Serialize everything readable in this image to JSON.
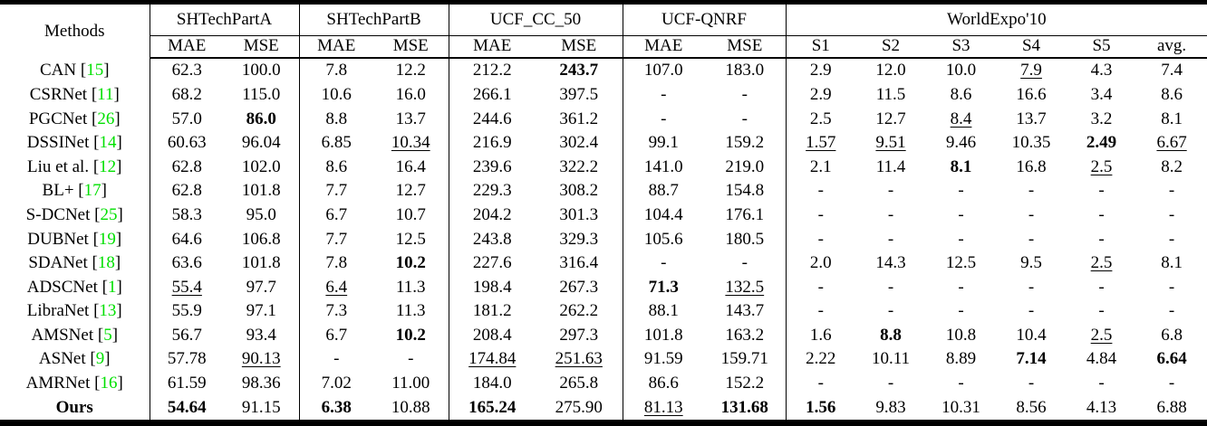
{
  "colors": {
    "citation_green": "#00e000",
    "text": "#000000",
    "background": "#ffffff"
  },
  "table": {
    "methods_label": "Methods",
    "groups": [
      {
        "label": "SHTechPartA",
        "sub": [
          "MAE",
          "MSE"
        ]
      },
      {
        "label": "SHTechPartB",
        "sub": [
          "MAE",
          "MSE"
        ]
      },
      {
        "label": "UCF_CC_50",
        "sub": [
          "MAE",
          "MSE"
        ]
      },
      {
        "label": "UCF-QNRF",
        "sub": [
          "MAE",
          "MSE"
        ]
      },
      {
        "label": "WorldExpo'10",
        "sub": [
          "S1",
          "S2",
          "S3",
          "S4",
          "S5",
          "avg."
        ]
      }
    ],
    "rows": [
      {
        "label": "CAN",
        "cite": "15",
        "bold": false,
        "cells": [
          {
            "v": "62.3"
          },
          {
            "v": "100.0"
          },
          {
            "v": "7.8"
          },
          {
            "v": "12.2"
          },
          {
            "v": "212.2"
          },
          {
            "v": "243.7",
            "b": true
          },
          {
            "v": "107.0"
          },
          {
            "v": "183.0"
          },
          {
            "v": "2.9"
          },
          {
            "v": "12.0"
          },
          {
            "v": "10.0"
          },
          {
            "v": "7.9",
            "u": true
          },
          {
            "v": "4.3"
          },
          {
            "v": "7.4"
          }
        ]
      },
      {
        "label": "CSRNet",
        "cite": "11",
        "bold": false,
        "cells": [
          {
            "v": "68.2"
          },
          {
            "v": "115.0"
          },
          {
            "v": "10.6"
          },
          {
            "v": "16.0"
          },
          {
            "v": "266.1"
          },
          {
            "v": "397.5"
          },
          {
            "v": "-"
          },
          {
            "v": "-"
          },
          {
            "v": "2.9"
          },
          {
            "v": "11.5"
          },
          {
            "v": "8.6"
          },
          {
            "v": "16.6"
          },
          {
            "v": "3.4"
          },
          {
            "v": "8.6"
          }
        ]
      },
      {
        "label": "PGCNet",
        "cite": "26",
        "bold": false,
        "cells": [
          {
            "v": "57.0"
          },
          {
            "v": "86.0",
            "b": true
          },
          {
            "v": "8.8"
          },
          {
            "v": "13.7"
          },
          {
            "v": "244.6"
          },
          {
            "v": "361.2"
          },
          {
            "v": "-"
          },
          {
            "v": "-"
          },
          {
            "v": "2.5"
          },
          {
            "v": "12.7"
          },
          {
            "v": "8.4",
            "u": true
          },
          {
            "v": "13.7"
          },
          {
            "v": "3.2"
          },
          {
            "v": "8.1"
          }
        ]
      },
      {
        "label": "DSSINet",
        "cite": "14",
        "bold": false,
        "cells": [
          {
            "v": "60.63"
          },
          {
            "v": "96.04"
          },
          {
            "v": "6.85"
          },
          {
            "v": "10.34",
            "u": true
          },
          {
            "v": "216.9"
          },
          {
            "v": "302.4"
          },
          {
            "v": "99.1"
          },
          {
            "v": "159.2"
          },
          {
            "v": "1.57",
            "u": true
          },
          {
            "v": "9.51",
            "u": true
          },
          {
            "v": "9.46"
          },
          {
            "v": "10.35"
          },
          {
            "v": "2.49",
            "b": true
          },
          {
            "v": "6.67",
            "u": true
          }
        ]
      },
      {
        "label": "Liu et al.",
        "cite": "12",
        "bold": false,
        "cells": [
          {
            "v": "62.8"
          },
          {
            "v": "102.0"
          },
          {
            "v": "8.6"
          },
          {
            "v": "16.4"
          },
          {
            "v": "239.6"
          },
          {
            "v": "322.2"
          },
          {
            "v": "141.0"
          },
          {
            "v": "219.0"
          },
          {
            "v": "2.1"
          },
          {
            "v": "11.4"
          },
          {
            "v": "8.1",
            "b": true
          },
          {
            "v": "16.8"
          },
          {
            "v": "2.5",
            "u": true
          },
          {
            "v": "8.2"
          }
        ]
      },
      {
        "label": "BL+",
        "cite": "17",
        "bold": false,
        "cells": [
          {
            "v": "62.8"
          },
          {
            "v": "101.8"
          },
          {
            "v": "7.7"
          },
          {
            "v": "12.7"
          },
          {
            "v": "229.3"
          },
          {
            "v": "308.2"
          },
          {
            "v": "88.7"
          },
          {
            "v": "154.8"
          },
          {
            "v": "-"
          },
          {
            "v": "-"
          },
          {
            "v": "-"
          },
          {
            "v": "-"
          },
          {
            "v": "-"
          },
          {
            "v": "-"
          }
        ]
      },
      {
        "label": "S-DCNet",
        "cite": "25",
        "bold": false,
        "cells": [
          {
            "v": "58.3"
          },
          {
            "v": "95.0"
          },
          {
            "v": "6.7"
          },
          {
            "v": "10.7"
          },
          {
            "v": "204.2"
          },
          {
            "v": "301.3"
          },
          {
            "v": "104.4"
          },
          {
            "v": "176.1"
          },
          {
            "v": "-"
          },
          {
            "v": "-"
          },
          {
            "v": "-"
          },
          {
            "v": "-"
          },
          {
            "v": "-"
          },
          {
            "v": "-"
          }
        ]
      },
      {
        "label": "DUBNet",
        "cite": "19",
        "bold": false,
        "cells": [
          {
            "v": "64.6"
          },
          {
            "v": "106.8"
          },
          {
            "v": "7.7"
          },
          {
            "v": "12.5"
          },
          {
            "v": "243.8"
          },
          {
            "v": "329.3"
          },
          {
            "v": "105.6"
          },
          {
            "v": "180.5"
          },
          {
            "v": "-"
          },
          {
            "v": "-"
          },
          {
            "v": "-"
          },
          {
            "v": "-"
          },
          {
            "v": "-"
          },
          {
            "v": "-"
          }
        ]
      },
      {
        "label": "SDANet",
        "cite": "18",
        "bold": false,
        "cells": [
          {
            "v": "63.6"
          },
          {
            "v": "101.8"
          },
          {
            "v": "7.8"
          },
          {
            "v": "10.2",
            "b": true
          },
          {
            "v": "227.6"
          },
          {
            "v": "316.4"
          },
          {
            "v": "-"
          },
          {
            "v": "-"
          },
          {
            "v": "2.0"
          },
          {
            "v": "14.3"
          },
          {
            "v": "12.5"
          },
          {
            "v": "9.5"
          },
          {
            "v": "2.5",
            "u": true
          },
          {
            "v": "8.1"
          }
        ]
      },
      {
        "label": "ADSCNet",
        "cite": "1",
        "bold": false,
        "cells": [
          {
            "v": "55.4",
            "u": true
          },
          {
            "v": "97.7"
          },
          {
            "v": "6.4",
            "u": true
          },
          {
            "v": "11.3"
          },
          {
            "v": "198.4"
          },
          {
            "v": "267.3"
          },
          {
            "v": "71.3",
            "b": true
          },
          {
            "v": "132.5",
            "u": true
          },
          {
            "v": "-"
          },
          {
            "v": "-"
          },
          {
            "v": "-"
          },
          {
            "v": "-"
          },
          {
            "v": "-"
          },
          {
            "v": "-"
          }
        ]
      },
      {
        "label": "LibraNet",
        "cite": "13",
        "bold": false,
        "cells": [
          {
            "v": "55.9"
          },
          {
            "v": "97.1"
          },
          {
            "v": "7.3"
          },
          {
            "v": "11.3"
          },
          {
            "v": "181.2"
          },
          {
            "v": "262.2"
          },
          {
            "v": "88.1"
          },
          {
            "v": "143.7"
          },
          {
            "v": "-"
          },
          {
            "v": "-"
          },
          {
            "v": "-"
          },
          {
            "v": "-"
          },
          {
            "v": "-"
          },
          {
            "v": "-"
          }
        ]
      },
      {
        "label": "AMSNet",
        "cite": "5",
        "bold": false,
        "cells": [
          {
            "v": "56.7"
          },
          {
            "v": "93.4"
          },
          {
            "v": "6.7"
          },
          {
            "v": "10.2",
            "b": true
          },
          {
            "v": "208.4"
          },
          {
            "v": "297.3"
          },
          {
            "v": "101.8"
          },
          {
            "v": "163.2"
          },
          {
            "v": "1.6"
          },
          {
            "v": "8.8",
            "b": true
          },
          {
            "v": "10.8"
          },
          {
            "v": "10.4"
          },
          {
            "v": "2.5",
            "u": true
          },
          {
            "v": "6.8"
          }
        ]
      },
      {
        "label": "ASNet",
        "cite": "9",
        "bold": false,
        "cells": [
          {
            "v": "57.78"
          },
          {
            "v": "90.13",
            "u": true
          },
          {
            "v": "-"
          },
          {
            "v": "-"
          },
          {
            "v": "174.84",
            "u": true
          },
          {
            "v": "251.63",
            "u": true
          },
          {
            "v": "91.59"
          },
          {
            "v": "159.71"
          },
          {
            "v": "2.22"
          },
          {
            "v": "10.11"
          },
          {
            "v": "8.89"
          },
          {
            "v": "7.14",
            "b": true
          },
          {
            "v": "4.84"
          },
          {
            "v": "6.64",
            "b": true
          }
        ]
      },
      {
        "label": "AMRNet",
        "cite": "16",
        "bold": false,
        "cells": [
          {
            "v": "61.59"
          },
          {
            "v": "98.36"
          },
          {
            "v": "7.02"
          },
          {
            "v": "11.00"
          },
          {
            "v": "184.0"
          },
          {
            "v": "265.8"
          },
          {
            "v": "86.6"
          },
          {
            "v": "152.2"
          },
          {
            "v": "-"
          },
          {
            "v": "-"
          },
          {
            "v": "-"
          },
          {
            "v": "-"
          },
          {
            "v": "-"
          },
          {
            "v": "-"
          }
        ]
      },
      {
        "label": "Ours",
        "cite": null,
        "bold": true,
        "cells": [
          {
            "v": "54.64",
            "b": true
          },
          {
            "v": "91.15"
          },
          {
            "v": "6.38",
            "b": true
          },
          {
            "v": "10.88"
          },
          {
            "v": "165.24",
            "b": true
          },
          {
            "v": "275.90"
          },
          {
            "v": "81.13",
            "u": true
          },
          {
            "v": "131.68",
            "b": true
          },
          {
            "v": "1.56",
            "b": true
          },
          {
            "v": "9.83"
          },
          {
            "v": "10.31"
          },
          {
            "v": "8.56"
          },
          {
            "v": "4.13"
          },
          {
            "v": "6.88"
          }
        ]
      }
    ]
  }
}
